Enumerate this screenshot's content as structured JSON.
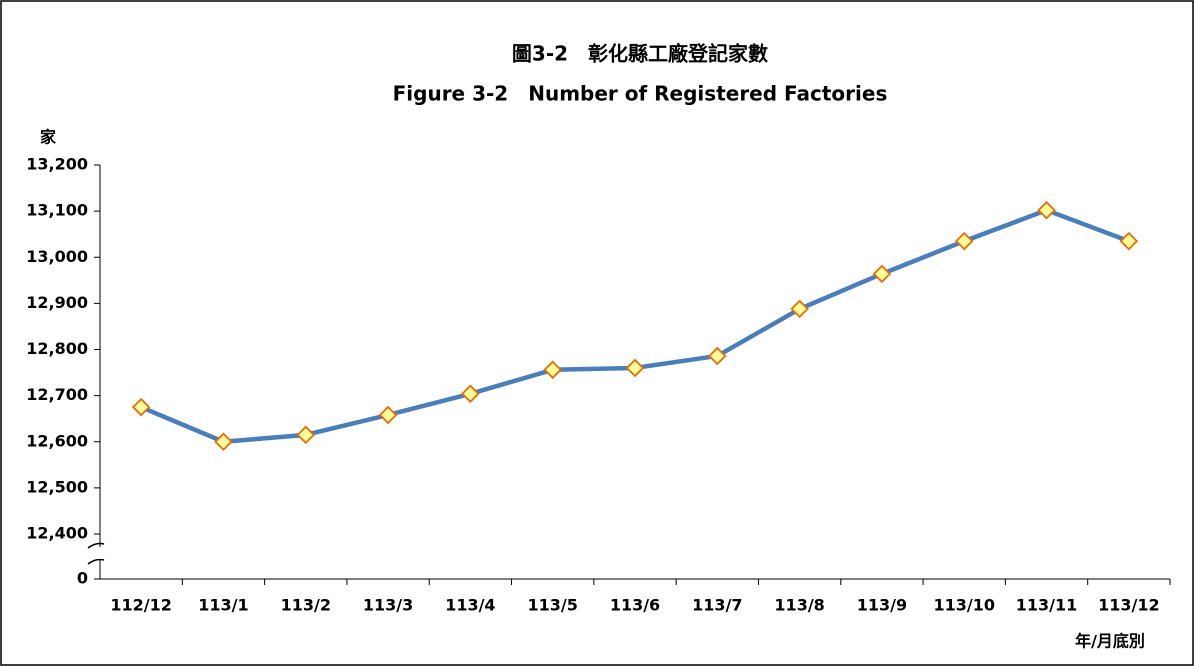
{
  "chart_data": {
    "type": "line",
    "title": "圖3-2　彰化縣工廠登記家數",
    "subtitle": "Figure 3-2　Number of Registered Factories",
    "y_label": "家",
    "x_label": "年/月底別",
    "categories": [
      "112/12",
      "113/1",
      "113/2",
      "113/3",
      "113/4",
      "113/5",
      "113/6",
      "113/7",
      "113/8",
      "113/9",
      "113/10",
      "113/11",
      "113/12"
    ],
    "series": [
      {
        "name": "Number of Registered Factories",
        "color": "#4a7ebb",
        "marker_fill": "#ffff99",
        "marker_stroke": "#e46c0a",
        "values": [
          12675,
          12600,
          12615,
          12658,
          12704,
          12756,
          12760,
          12786,
          12888,
          12964,
          13035,
          13102,
          13035
        ]
      }
    ],
    "ylim": [
      12400,
      13200
    ],
    "axis_break": true,
    "yticks": [
      0,
      {
        "value": 12400,
        "label": "12,400"
      },
      {
        "value": 12500,
        "label": "12,500"
      },
      {
        "value": 12600,
        "label": "12,600"
      },
      {
        "value": 12700,
        "label": "12,700"
      },
      {
        "value": 12800,
        "label": "12,800"
      },
      {
        "value": 12900,
        "label": "12,900"
      },
      {
        "value": 13000,
        "label": "13,000"
      },
      {
        "value": 13100,
        "label": "13,100"
      },
      {
        "value": 13200,
        "label": "13,200"
      }
    ],
    "grid": false
  }
}
